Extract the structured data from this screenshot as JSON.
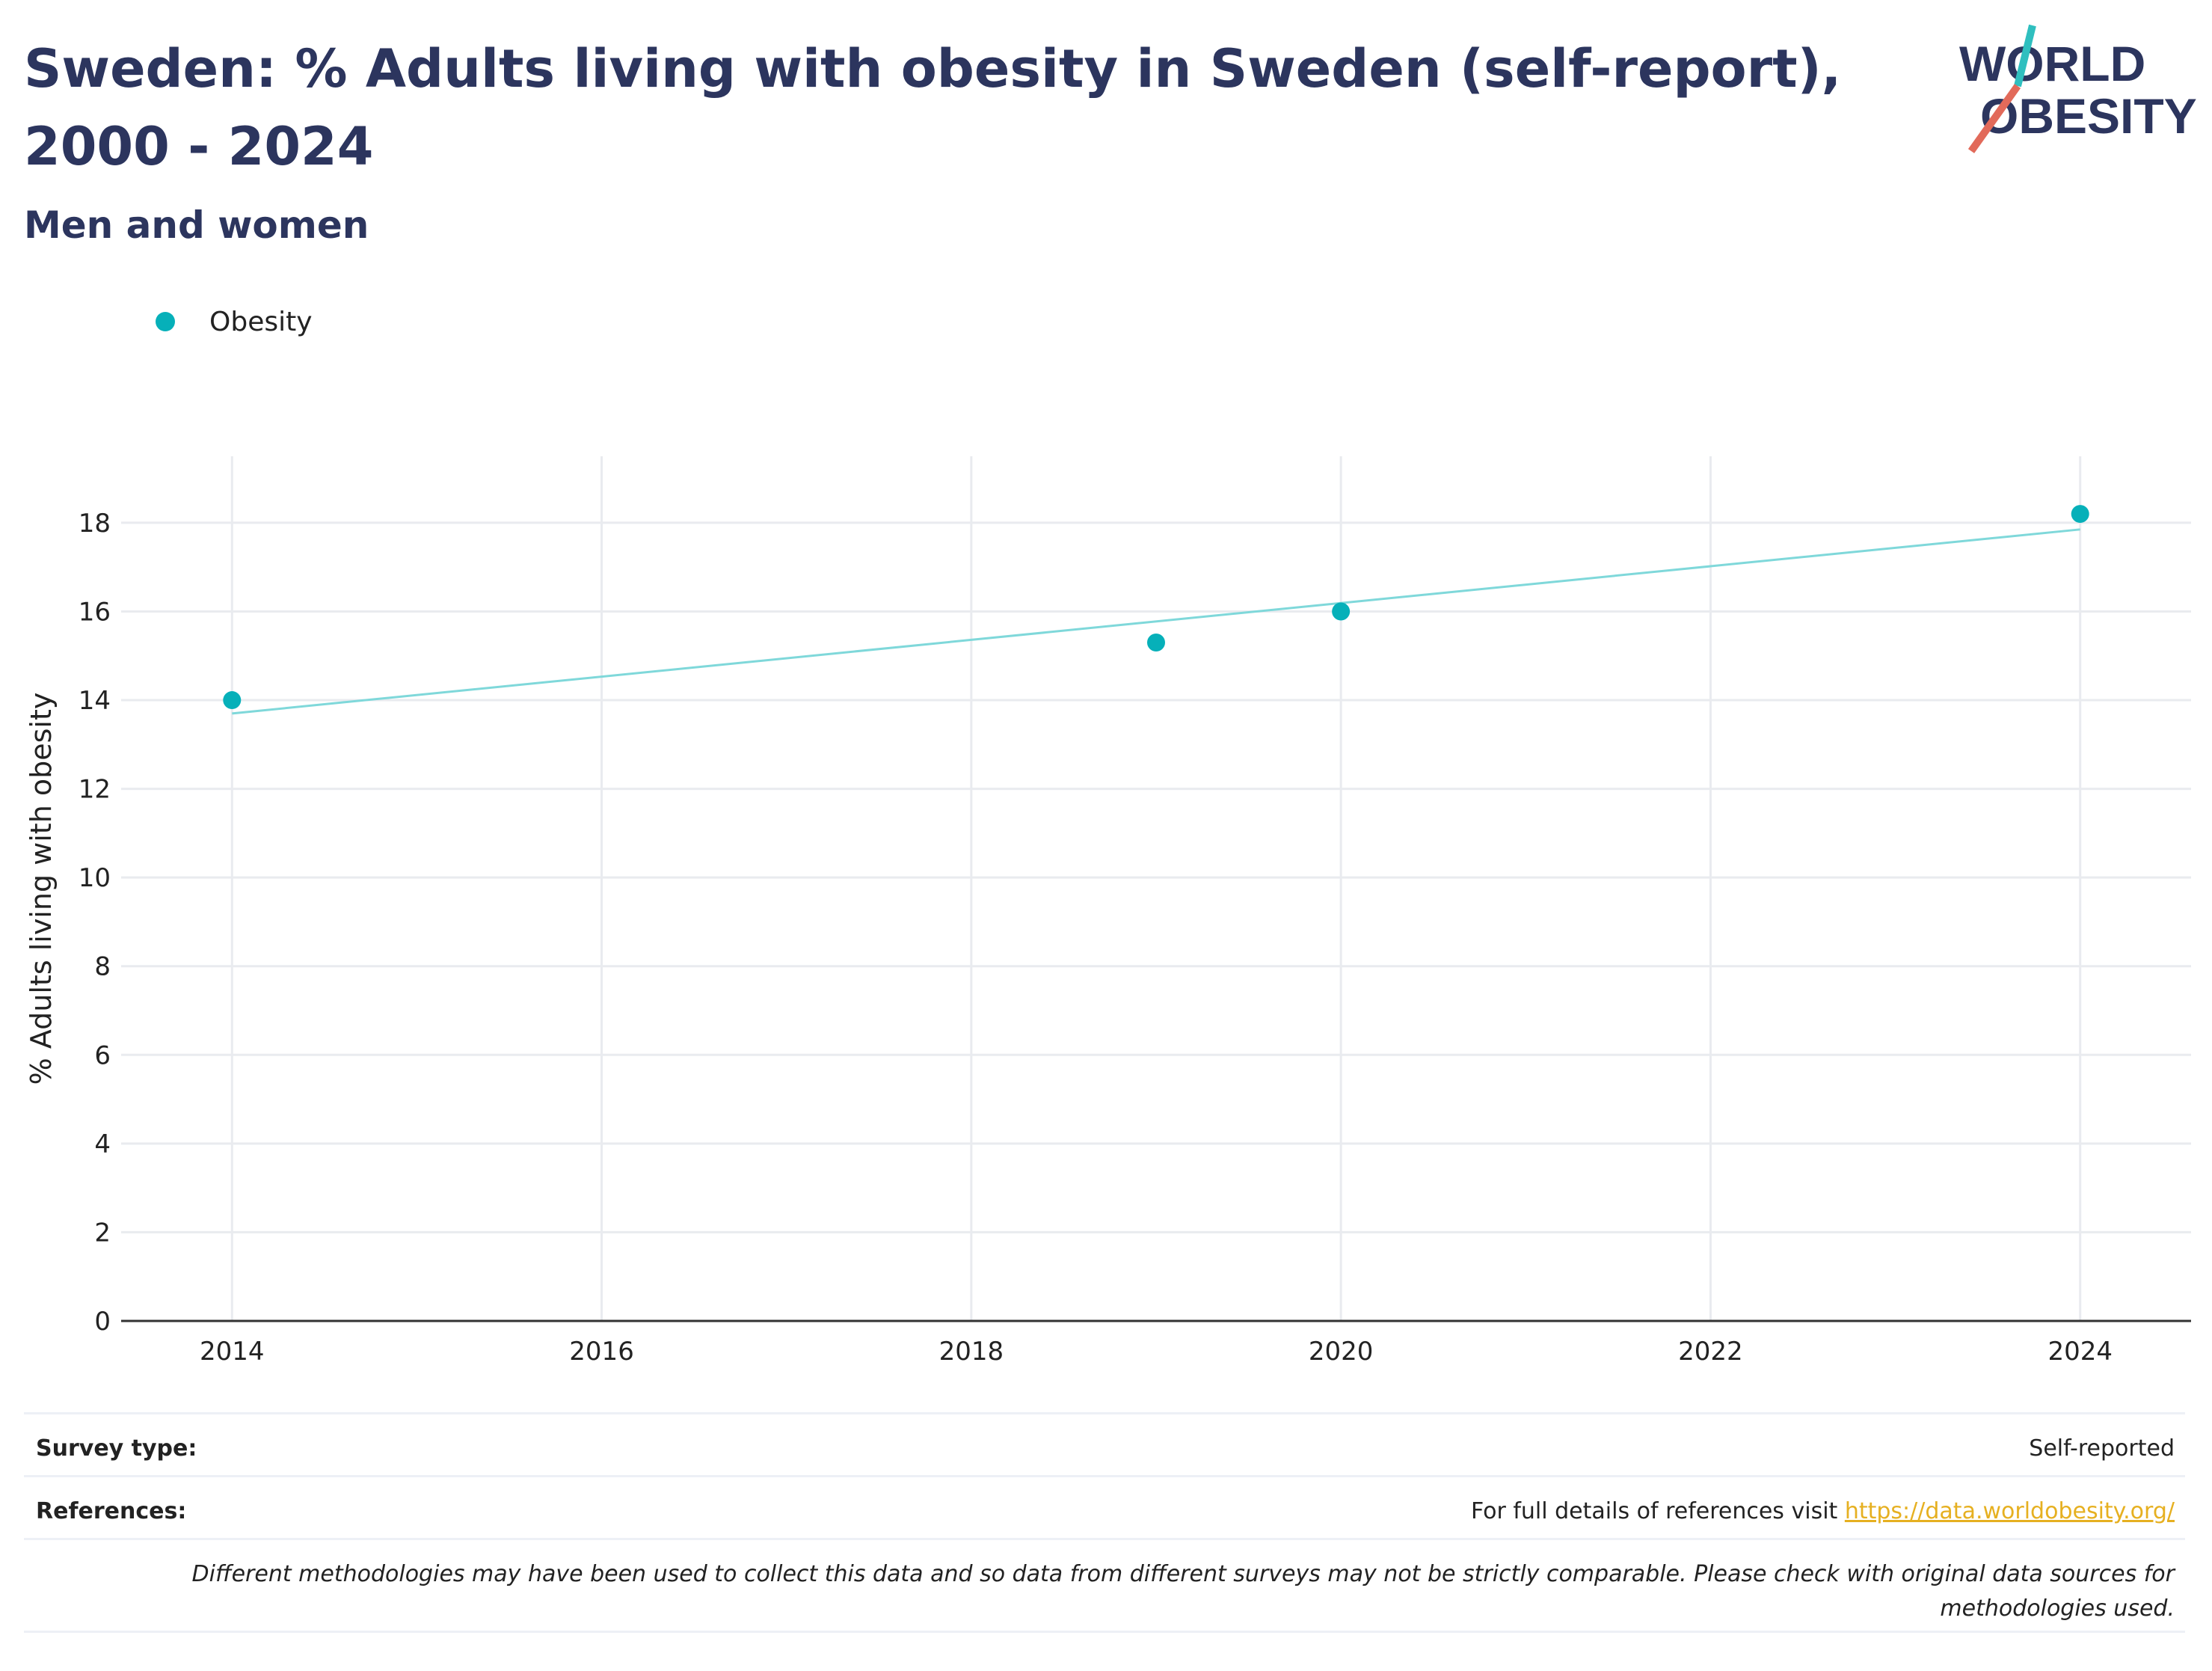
{
  "header": {
    "title": "Sweden: % Adults living with obesity in Sweden (self-report), 2000 - 2024",
    "subtitle": "Men and women"
  },
  "logo": {
    "line1": "WORLD",
    "line2": "OBESITY"
  },
  "legend": {
    "label": "Obesity"
  },
  "colors": {
    "marker": "#06b0b9",
    "trend": "#7fd8da",
    "heading": "#2c355e",
    "link": "#e6b021",
    "grid": "#e9ebef"
  },
  "chart_data": {
    "type": "scatter",
    "title": "Sweden: % Adults living with obesity in Sweden (self-report), 2000 - 2024",
    "subtitle": "Men and women",
    "xlabel": "",
    "ylabel": "% Adults living with obesity",
    "xlim": [
      2013.4,
      2024.6
    ],
    "ylim": [
      0,
      19.5
    ],
    "x_ticks": [
      2014,
      2016,
      2018,
      2020,
      2022,
      2024
    ],
    "y_ticks": [
      0,
      2,
      4,
      6,
      8,
      10,
      12,
      14,
      16,
      18
    ],
    "grid": true,
    "legend_position": "top-left",
    "series": [
      {
        "name": "Obesity",
        "x": [
          2014,
          2019,
          2020,
          2024
        ],
        "y": [
          14.0,
          15.3,
          16.0,
          18.2
        ]
      }
    ],
    "trendline": {
      "x": [
        2014,
        2024
      ],
      "y": [
        13.7,
        17.85
      ]
    }
  },
  "footer": {
    "survey_type_label": "Survey type:",
    "survey_type_value": "Self-reported",
    "references_label": "References:",
    "references_text": "For full details of references visit ",
    "references_link": "https://data.worldobesity.org/",
    "disclaimer": "Different methodologies may have been used to collect this data and so data from different surveys may not be strictly comparable. Please check with original data sources for methodologies used."
  }
}
